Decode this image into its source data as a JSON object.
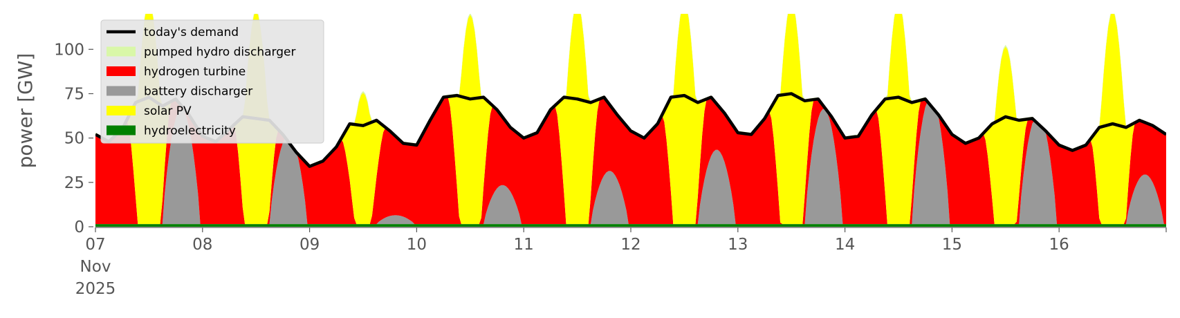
{
  "chart_data": {
    "type": "area",
    "ylabel": "power [GW]",
    "ylim": [
      0,
      120
    ],
    "yticks": [
      0,
      25,
      50,
      75,
      100
    ],
    "xlim": [
      "2025-11-07T00:00",
      "2025-11-17T00:00"
    ],
    "x_ticks": [
      {
        "date": "2025-11-07",
        "lines": [
          "07",
          "Nov",
          "2025"
        ]
      },
      {
        "date": "2025-11-08",
        "lines": [
          "08"
        ]
      },
      {
        "date": "2025-11-09",
        "lines": [
          "09"
        ]
      },
      {
        "date": "2025-11-10",
        "lines": [
          "10"
        ]
      },
      {
        "date": "2025-11-11",
        "lines": [
          "11"
        ]
      },
      {
        "date": "2025-11-12",
        "lines": [
          "12"
        ]
      },
      {
        "date": "2025-11-13",
        "lines": [
          "13"
        ]
      },
      {
        "date": "2025-11-14",
        "lines": [
          "14"
        ]
      },
      {
        "date": "2025-11-15",
        "lines": [
          "15"
        ]
      },
      {
        "date": "2025-11-16",
        "lines": [
          "16"
        ]
      }
    ],
    "legend_position": "top-left",
    "grid": false,
    "stack_order": [
      "hydroelectricity",
      "battery discharger",
      "hydrogen turbine",
      "solar PV",
      "pumped hydro discharger"
    ],
    "series": [
      {
        "name": "hydroelectricity",
        "color": "#008000",
        "daily_mean_GW": 1.5
      },
      {
        "name": "battery discharger",
        "color": "#999999",
        "daily_nighttime_peak_GW": [
          65,
          50,
          5,
          22,
          30,
          42,
          65,
          72,
          62,
          28
        ]
      },
      {
        "name": "solar PV",
        "color": "#ffff00",
        "daily_peak_GW": [
          125,
          120,
          74,
          118,
          125,
          125,
          125,
          125,
          100,
          120
        ]
      },
      {
        "name": "pumped hydro discharger",
        "color": "#d9f7a8",
        "daily_mean_GW": 1.0
      },
      {
        "name": "hydrogen turbine",
        "color": "#ff0000",
        "note_fill": "fills remaining demand"
      }
    ],
    "demand": {
      "name": "today's demand",
      "color": "#000000",
      "x_hours_from_start": [
        0,
        3,
        6,
        9,
        12,
        15,
        18,
        21,
        24,
        27,
        30,
        33,
        36,
        39,
        42,
        45,
        48,
        51,
        54,
        57,
        60,
        63,
        66,
        69,
        72,
        75,
        78,
        81,
        84,
        87,
        90,
        93,
        96,
        99,
        102,
        105,
        108,
        111,
        114,
        117,
        120,
        123,
        126,
        129,
        132,
        135,
        138,
        141,
        144,
        147,
        150,
        153,
        156,
        159,
        162,
        165,
        168,
        171,
        174,
        177,
        180,
        183,
        186,
        189,
        192,
        195,
        198,
        201,
        204,
        207,
        210,
        213,
        216,
        219,
        222,
        225,
        228,
        231,
        234,
        237,
        240
      ],
      "values_GW": [
        52,
        48,
        55,
        70,
        73,
        68,
        72,
        63,
        51,
        48,
        55,
        62,
        61,
        60,
        52,
        42,
        34,
        37,
        45,
        58,
        57,
        60,
        54,
        47,
        46,
        60,
        73,
        74,
        72,
        73,
        66,
        56,
        50,
        53,
        66,
        73,
        72,
        70,
        73,
        63,
        54,
        50,
        58,
        73,
        74,
        70,
        73,
        64,
        53,
        52,
        61,
        74,
        75,
        71,
        72,
        62,
        50,
        51,
        63,
        72,
        73,
        70,
        72,
        63,
        52,
        47,
        50,
        58,
        62,
        60,
        61,
        54,
        46,
        43,
        46,
        56,
        58,
        56,
        60,
        57,
        52
      ]
    }
  }
}
